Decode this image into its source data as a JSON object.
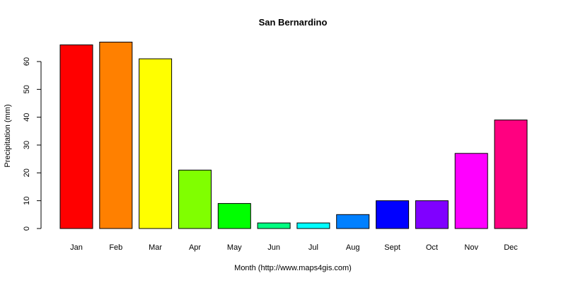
{
  "chart_data": {
    "type": "bar",
    "title": "San Bernardino",
    "xlabel": "Month (http://www.maps4gis.com)",
    "ylabel": "Precipitation (mm)",
    "categories": [
      "Jan",
      "Feb",
      "Mar",
      "Apr",
      "May",
      "Jun",
      "Jul",
      "Aug",
      "Sept",
      "Oct",
      "Nov",
      "Dec"
    ],
    "values": [
      66,
      67,
      61,
      21,
      9,
      2,
      2,
      5,
      10,
      10,
      27,
      39
    ],
    "colors": [
      "#ff0000",
      "#ff8000",
      "#ffff00",
      "#80ff00",
      "#00ff00",
      "#00ff80",
      "#00ffff",
      "#0080ff",
      "#0000ff",
      "#8000ff",
      "#ff00ff",
      "#ff0080"
    ],
    "y_ticks": [
      0,
      10,
      20,
      30,
      40,
      50,
      60
    ],
    "ylim": [
      0,
      68
    ],
    "grid": false,
    "legend": "none"
  }
}
